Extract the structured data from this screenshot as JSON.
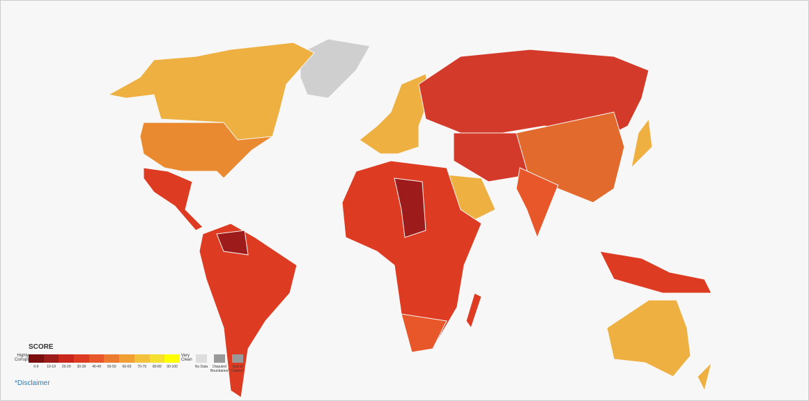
{
  "legend": {
    "title": "SCORE",
    "low_label": "Highly Corrupt",
    "high_label": "Very Clean",
    "bins": [
      {
        "label": "0-9",
        "color": "#7a0e0e"
      },
      {
        "label": "10-19",
        "color": "#9e1b1b"
      },
      {
        "label": "20-29",
        "color": "#c9261c"
      },
      {
        "label": "30-39",
        "color": "#dd3b22"
      },
      {
        "label": "40-49",
        "color": "#e8572a"
      },
      {
        "label": "50-59",
        "color": "#ec7a30"
      },
      {
        "label": "60-69",
        "color": "#f0a033"
      },
      {
        "label": "70-79",
        "color": "#f2c23c"
      },
      {
        "label": "80-89",
        "color": "#f5e030"
      },
      {
        "label": "90-100",
        "color": "#ffff00"
      }
    ],
    "extras": [
      {
        "label": "No Data"
      },
      {
        "label": "Disputed Boundaries*"
      },
      {
        "label": "Line of Control*"
      }
    ]
  },
  "disclaimer": "*Disclaimer"
}
